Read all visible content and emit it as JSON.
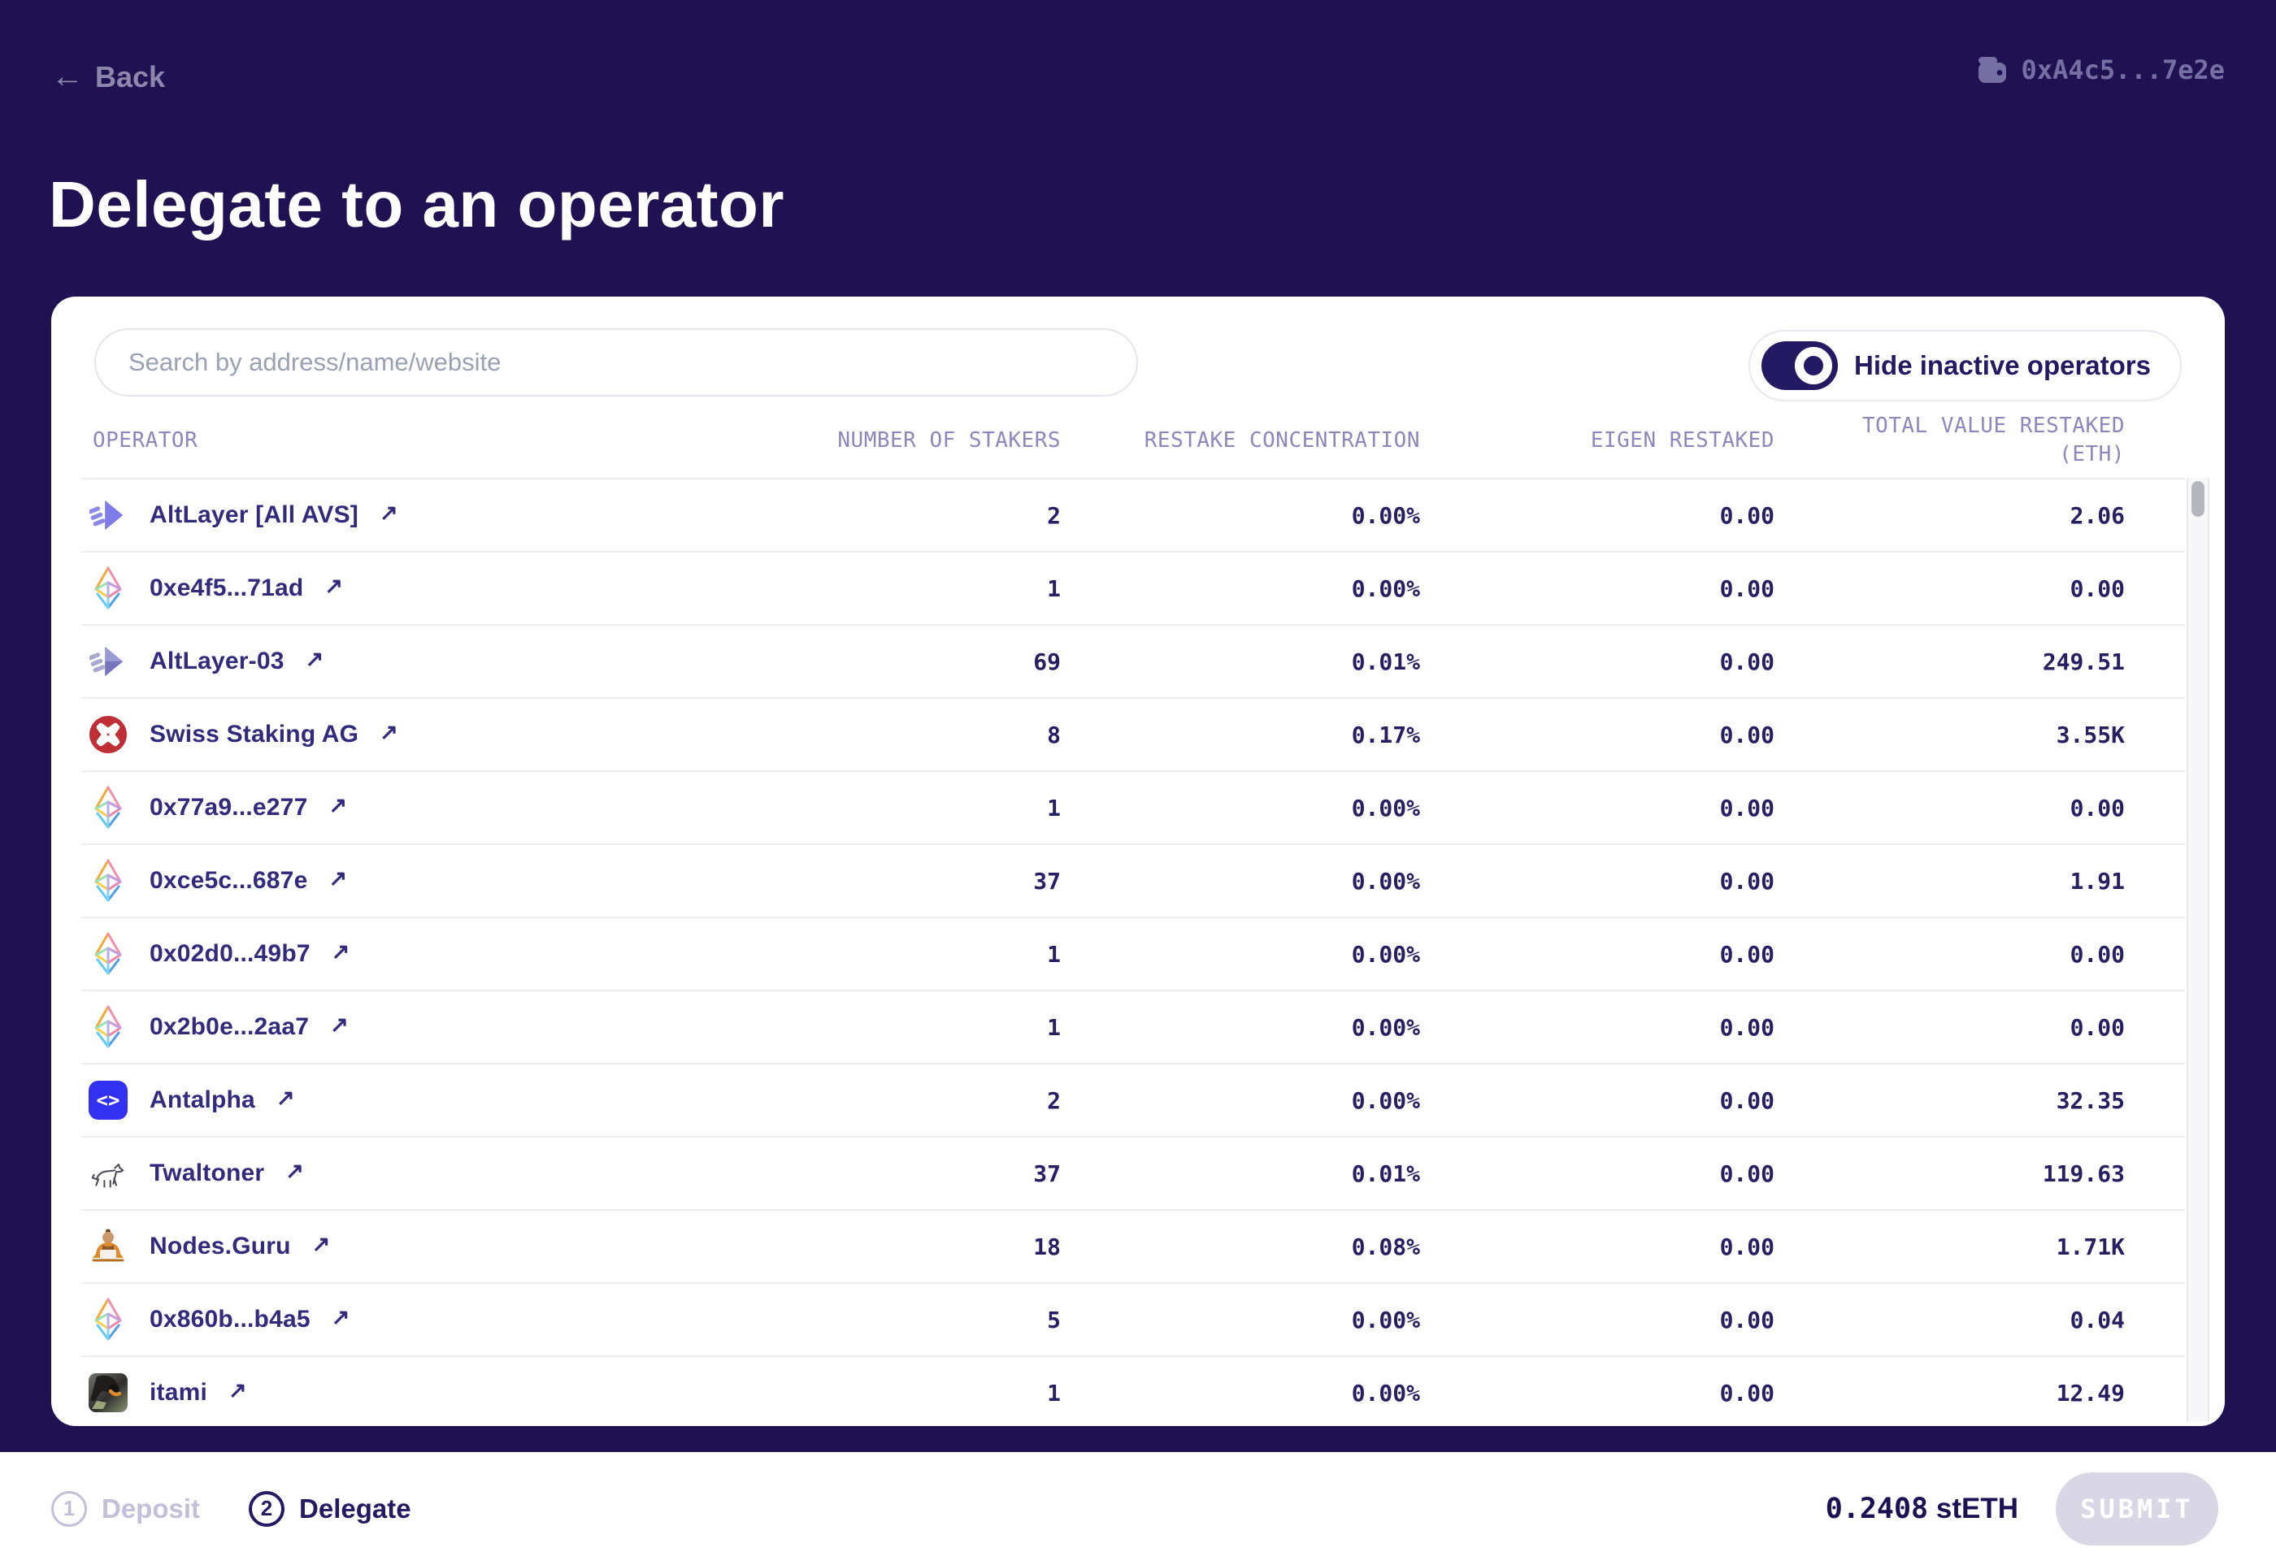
{
  "colors": {
    "background": "#1f1152",
    "accent_navy": "#241a63",
    "card": "#ffffff",
    "swiss_red": "#bf3036",
    "antalpha_blue": "#3331f1",
    "altlayer_purple": "#7d7ce8",
    "submit_bg": "#d9d6e6",
    "muted_step": "#c3bfd8"
  },
  "topbar": {
    "back_arrow": "←",
    "back_label": "Back",
    "wallet_address": "0xA4c5...7e2e"
  },
  "page_title": "Delegate to an operator",
  "controls": {
    "search_placeholder": "Search by address/name/website",
    "toggle_label": "Hide inactive operators",
    "toggle_on": true
  },
  "icon_glyphs": {
    "external_link": "↗",
    "antalpha": "<>"
  },
  "table": {
    "headers": {
      "operator": "OPERATOR",
      "stakers": "NUMBER OF STAKERS",
      "concentration": "RESTAKE CONCENTRATION",
      "eigen": "EIGEN RESTAKED",
      "total_line1": "TOTAL VALUE RESTAKED",
      "total_line2": "(ETH)"
    },
    "rows": [
      {
        "icon": "altlayer-logo",
        "name": "AltLayer [All AVS]",
        "stakers": "2",
        "concentration": "0.00%",
        "eigen": "0.00",
        "total": "2.06"
      },
      {
        "icon": "eth-diamond",
        "name": "0xe4f5...71ad",
        "stakers": "1",
        "concentration": "0.00%",
        "eigen": "0.00",
        "total": "0.00"
      },
      {
        "icon": "altlayer-muted-logo",
        "name": "AltLayer-03",
        "stakers": "69",
        "concentration": "0.01%",
        "eigen": "0.00",
        "total": "249.51"
      },
      {
        "icon": "swiss-staking-logo",
        "name": "Swiss Staking AG",
        "stakers": "8",
        "concentration": "0.17%",
        "eigen": "0.00",
        "total": "3.55K"
      },
      {
        "icon": "eth-diamond",
        "name": "0x77a9...e277",
        "stakers": "1",
        "concentration": "0.00%",
        "eigen": "0.00",
        "total": "0.00"
      },
      {
        "icon": "eth-diamond",
        "name": "0xce5c...687e",
        "stakers": "37",
        "concentration": "0.00%",
        "eigen": "0.00",
        "total": "1.91"
      },
      {
        "icon": "eth-diamond",
        "name": "0x02d0...49b7",
        "stakers": "1",
        "concentration": "0.00%",
        "eigen": "0.00",
        "total": "0.00"
      },
      {
        "icon": "eth-diamond",
        "name": "0x2b0e...2aa7",
        "stakers": "1",
        "concentration": "0.00%",
        "eigen": "0.00",
        "total": "0.00"
      },
      {
        "icon": "antalpha-logo",
        "name": "Antalpha",
        "stakers": "2",
        "concentration": "0.00%",
        "eigen": "0.00",
        "total": "32.35"
      },
      {
        "icon": "twaltoner-logo",
        "name": "Twaltoner",
        "stakers": "37",
        "concentration": "0.01%",
        "eigen": "0.00",
        "total": "119.63"
      },
      {
        "icon": "nodesguru-logo",
        "name": "Nodes.Guru",
        "stakers": "18",
        "concentration": "0.08%",
        "eigen": "0.00",
        "total": "1.71K"
      },
      {
        "icon": "eth-diamond",
        "name": "0x860b...b4a5",
        "stakers": "5",
        "concentration": "0.00%",
        "eigen": "0.00",
        "total": "0.04"
      },
      {
        "icon": "itami-avatar",
        "name": "itami",
        "stakers": "1",
        "concentration": "0.00%",
        "eigen": "0.00",
        "total": "12.49"
      }
    ]
  },
  "footer": {
    "step1_number": "1",
    "step1_label": "Deposit",
    "step2_number": "2",
    "step2_label": "Delegate",
    "amount_value": "0.2408",
    "amount_unit": "stETH",
    "submit_label": "SUBMIT"
  }
}
